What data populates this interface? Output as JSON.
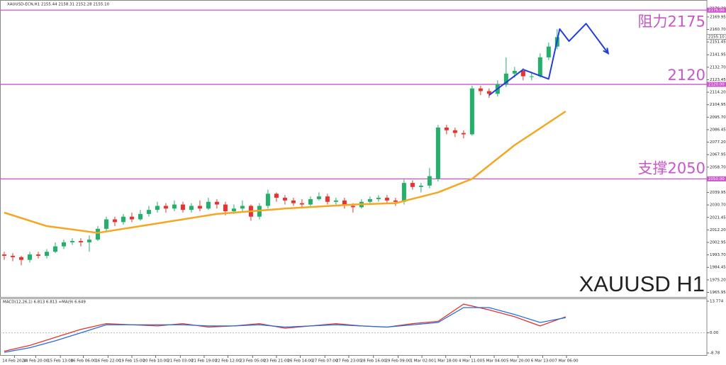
{
  "chart_data": [
    {
      "type": "candlestick",
      "title": "XAUUSD H1",
      "subtitle": "XAUUSD-ECN,H1  2155.44 2158.31 2152.28 2155.10",
      "up_color": "#22b06a",
      "down_color": "#e8322e",
      "ohlc": [
        [
          1994,
          1996,
          1990,
          1993
        ],
        [
          1993,
          1995,
          1989,
          1992
        ],
        [
          1992,
          1993,
          1986,
          1990
        ],
        [
          1990,
          1996,
          1988,
          1994
        ],
        [
          1994,
          1996,
          1991,
          1993
        ],
        [
          1993,
          1998,
          1991,
          1996
        ],
        [
          1996,
          2003,
          1995,
          2000
        ],
        [
          2000,
          2005,
          1998,
          2003
        ],
        [
          2003,
          2006,
          2001,
          2004
        ],
        [
          2004,
          2006,
          2000,
          2003
        ],
        [
          2003,
          2008,
          1996,
          2005
        ],
        [
          2005,
          2015,
          2004,
          2013
        ],
        [
          2013,
          2022,
          2011,
          2020
        ],
        [
          2020,
          2022,
          2015,
          2018
        ],
        [
          2018,
          2024,
          2016,
          2022
        ],
        [
          2022,
          2025,
          2018,
          2020
        ],
        [
          2020,
          2027,
          2019,
          2024
        ],
        [
          2024,
          2030,
          2022,
          2027
        ],
        [
          2027,
          2033,
          2025,
          2030
        ],
        [
          2030,
          2032,
          2025,
          2028
        ],
        [
          2028,
          2034,
          2026,
          2031
        ],
        [
          2031,
          2033,
          2025,
          2027
        ],
        [
          2027,
          2032,
          2025,
          2030
        ],
        [
          2030,
          2034,
          2026,
          2028
        ],
        [
          2028,
          2036,
          2027,
          2033
        ],
        [
          2033,
          2035,
          2028,
          2031
        ],
        [
          2031,
          2033,
          2023,
          2026
        ],
        [
          2026,
          2031,
          2024,
          2028
        ],
        [
          2028,
          2034,
          2026,
          2030
        ],
        [
          2030,
          2031,
          2019,
          2022
        ],
        [
          2022,
          2032,
          2020,
          2030
        ],
        [
          2030,
          2042,
          2028,
          2039
        ],
        [
          2039,
          2040,
          2033,
          2036
        ],
        [
          2036,
          2038,
          2031,
          2034
        ],
        [
          2034,
          2036,
          2030,
          2032
        ],
        [
          2032,
          2035,
          2029,
          2031
        ],
        [
          2031,
          2037,
          2030,
          2035
        ],
        [
          2035,
          2040,
          2034,
          2037
        ],
        [
          2037,
          2039,
          2031,
          2033
        ],
        [
          2033,
          2036,
          2031,
          2034
        ],
        [
          2034,
          2036,
          2028,
          2030
        ],
        [
          2030,
          2032,
          2025,
          2029
        ],
        [
          2029,
          2035,
          2028,
          2033
        ],
        [
          2033,
          2037,
          2032,
          2035
        ],
        [
          2035,
          2038,
          2033,
          2036
        ],
        [
          2036,
          2038,
          2032,
          2034
        ],
        [
          2034,
          2036,
          2030,
          2033
        ],
        [
          2033,
          2050,
          2031,
          2047
        ],
        [
          2047,
          2049,
          2042,
          2044
        ],
        [
          2044,
          2047,
          2040,
          2045
        ],
        [
          2045,
          2058,
          2043,
          2052
        ],
        [
          2050,
          2090,
          2048,
          2088
        ],
        [
          2088,
          2090,
          2083,
          2086
        ],
        [
          2086,
          2088,
          2081,
          2084
        ],
        [
          2084,
          2086,
          2080,
          2083
        ],
        [
          2083,
          2119,
          2082,
          2117
        ],
        [
          2117,
          2119,
          2112,
          2115
        ],
        [
          2115,
          2117,
          2110,
          2113
        ],
        [
          2113,
          2123,
          2111,
          2120
        ],
        [
          2120,
          2140,
          2118,
          2128
        ],
        [
          2128,
          2133,
          2125,
          2130
        ],
        [
          2130,
          2132,
          2123,
          2126
        ],
        [
          2126,
          2129,
          2123,
          2126
        ],
        [
          2126,
          2143,
          2125,
          2140
        ],
        [
          2140,
          2151,
          2138,
          2148
        ],
        [
          2148,
          2161,
          2146,
          2155
        ]
      ],
      "ma": {
        "color": "#f5a623",
        "x": [
          0,
          5,
          11,
          17,
          25,
          33,
          41,
          46,
          51,
          55,
          60,
          66
        ],
        "values": [
          2025,
          2015,
          2010,
          2016,
          2024,
          2028,
          2031,
          2032,
          2040,
          2050,
          2075,
          2100
        ]
      },
      "projection": {
        "color": "#1f3fdc",
        "x": [
          57,
          61,
          64,
          65.3,
          66.4,
          68.4,
          71
        ],
        "values": [
          2112,
          2131,
          2124,
          2161,
          2152,
          2165,
          2143
        ]
      },
      "level_color": "#cc55cc",
      "levels": [
        {
          "value": 2175,
          "label": "阻力2175",
          "axis_label": "2175.00"
        },
        {
          "value": 2120,
          "label": "2120",
          "axis_label": "2120.00"
        },
        {
          "value": 2050,
          "label": "支撑2050",
          "axis_label": "2050.00"
        }
      ],
      "last_price": {
        "value": 2155.1,
        "label": "2155.10"
      },
      "xlim": [
        -0.5,
        82.6
      ],
      "ylim": [
        1962,
        2182.5
      ],
      "yticks": [
        {
          "value": 2176.2,
          "label": "2176.20"
        },
        {
          "value": 2169.95,
          "label": "2169.95"
        },
        {
          "value": 2160.7,
          "label": "2160.70"
        },
        {
          "value": 2151.45,
          "label": "2151.45"
        },
        {
          "value": 2141.95,
          "label": "2141.95"
        },
        {
          "value": 2132.7,
          "label": "2132.70"
        },
        {
          "value": 2123.45,
          "label": "2123.45"
        },
        {
          "value": 2114.2,
          "label": "2114.20"
        },
        {
          "value": 2104.95,
          "label": "2104.95"
        },
        {
          "value": 2095.7,
          "label": "2095.70"
        },
        {
          "value": 2086.45,
          "label": "2086.45"
        },
        {
          "value": 2077.2,
          "label": "2077.20"
        },
        {
          "value": 2067.95,
          "label": "2067.95"
        },
        {
          "value": 2058.7,
          "label": "2058.70"
        },
        {
          "value": 2049.45,
          "label": "2049.45"
        },
        {
          "value": 2039.95,
          "label": "2039.95"
        },
        {
          "value": 2030.7,
          "label": "2030.70"
        },
        {
          "value": 2021.45,
          "label": "2021.45"
        },
        {
          "value": 2012.2,
          "label": "2012.20"
        },
        {
          "value": 2002.95,
          "label": "2002.95"
        },
        {
          "value": 1993.7,
          "label": "1993.70"
        },
        {
          "value": 1984.45,
          "label": "1984.45"
        },
        {
          "value": 1975.2,
          "label": "1975.20"
        },
        {
          "value": 1965.95,
          "label": "1965.95"
        }
      ]
    },
    {
      "type": "line",
      "title": "MACD(12,26,1) 6.813 6.813 ∞MA(9) 6.649",
      "x": [
        0,
        3,
        6,
        9,
        12,
        15,
        18,
        21,
        24,
        27,
        30,
        33,
        36,
        39,
        42,
        45,
        48,
        51,
        54,
        57,
        60,
        63,
        66
      ],
      "series": [
        {
          "color": "#e8322e",
          "values": [
            -8,
            -5.5,
            -2,
            1.5,
            4,
            3.5,
            3,
            4,
            2.5,
            3,
            4,
            2,
            3,
            4,
            3,
            2.5,
            4,
            5,
            12.5,
            10,
            7,
            3,
            7
          ]
        },
        {
          "color": "#1e6fe0",
          "values": [
            -8.5,
            -6.5,
            -3.5,
            0,
            3.5,
            3.5,
            3.5,
            3.5,
            3,
            3,
            3.5,
            2.5,
            3,
            3.5,
            3,
            2.5,
            3.5,
            4.5,
            11,
            11,
            8,
            4.5,
            6.6
          ]
        }
      ],
      "xlim": [
        -0.5,
        82.6
      ],
      "ylim": [
        -8.78,
        13.774
      ],
      "yticks": [
        13.774,
        {
          "value": 0,
          "label": "0.00"
        },
        -8.78
      ],
      "xticks": [
        {
          "value": 1.2,
          "label": "14 Feb 2024"
        },
        {
          "value": 3.7,
          "label": "14 Feb 20:00"
        },
        {
          "value": 6.6,
          "label": "15 Feb 13:00"
        },
        {
          "value": 9.3,
          "label": "16 Feb 06:00"
        },
        {
          "value": 12.2,
          "label": "16 Feb 22:00"
        },
        {
          "value": 15,
          "label": "19 Feb 15:00"
        },
        {
          "value": 17.8,
          "label": "20 Feb 10:00"
        },
        {
          "value": 20.7,
          "label": "21 Feb 03:00"
        },
        {
          "value": 23.5,
          "label": "21 Feb 19:00"
        },
        {
          "value": 26.3,
          "label": "22 Feb 12:00"
        },
        {
          "value": 29.2,
          "label": "23 Feb 05:00"
        },
        {
          "value": 32,
          "label": "23 Feb 21:00"
        },
        {
          "value": 34.8,
          "label": "26 Feb 14:00"
        },
        {
          "value": 37.7,
          "label": "27 Feb 07:00"
        },
        {
          "value": 40.5,
          "label": "27 Feb 23:00"
        },
        {
          "value": 43.4,
          "label": "28 Feb 16:00"
        },
        {
          "value": 46.3,
          "label": "29 Feb 09:00"
        },
        {
          "value": 49.1,
          "label": "1 Mar 02:00"
        },
        {
          "value": 51.9,
          "label": "1 Mar 18:00"
        },
        {
          "value": 54.8,
          "label": "4 Mar 11:00"
        },
        {
          "value": 57.6,
          "label": "5 Mar 04:00"
        },
        {
          "value": 60.4,
          "label": "5 Mar 20:00"
        },
        {
          "value": 63.3,
          "label": "6 Mar 13:00"
        },
        {
          "value": 66.1,
          "label": "7 Mar 06:00"
        }
      ]
    }
  ]
}
